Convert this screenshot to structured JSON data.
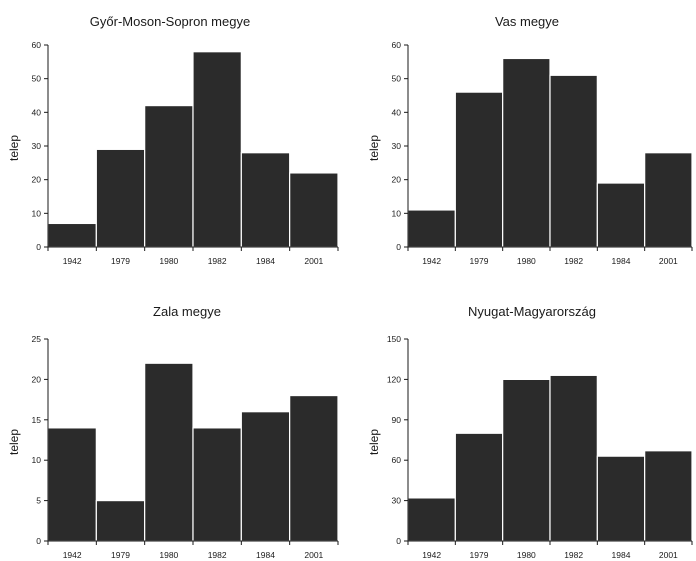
{
  "chart_data": [
    {
      "type": "bar",
      "title": "Győr-Moson-Sopron megye",
      "ylabel": "telep",
      "xlabel": "",
      "categories": [
        "1942",
        "1979",
        "1980",
        "1982",
        "1984",
        "2001"
      ],
      "values": [
        7,
        29,
        42,
        58,
        28,
        22
      ],
      "ylim": [
        0,
        60
      ],
      "yticks": [
        0,
        10,
        20,
        30,
        40,
        50,
        60
      ],
      "grid": false
    },
    {
      "type": "bar",
      "title": "Vas megye",
      "ylabel": "telep",
      "xlabel": "",
      "categories": [
        "1942",
        "1979",
        "1980",
        "1982",
        "1984",
        "2001"
      ],
      "values": [
        11,
        46,
        56,
        51,
        19,
        28
      ],
      "ylim": [
        0,
        60
      ],
      "yticks": [
        0,
        10,
        20,
        30,
        40,
        50,
        60
      ],
      "grid": false
    },
    {
      "type": "bar",
      "title": "Zala megye",
      "ylabel": "telep",
      "xlabel": "",
      "categories": [
        "1942",
        "1979",
        "1980",
        "1982",
        "1984",
        "2001"
      ],
      "values": [
        14,
        5,
        22,
        14,
        16,
        18
      ],
      "ylim": [
        0,
        25
      ],
      "yticks": [
        0,
        5,
        10,
        15,
        20,
        25
      ],
      "grid": false
    },
    {
      "type": "bar",
      "title": "Nyugat-Magyarország",
      "ylabel": "telep",
      "xlabel": "",
      "categories": [
        "1942",
        "1979",
        "1980",
        "1982",
        "1984",
        "2001"
      ],
      "values": [
        32,
        80,
        120,
        123,
        63,
        67
      ],
      "ylim": [
        0,
        150
      ],
      "yticks": [
        0,
        30,
        60,
        90,
        120,
        150
      ],
      "grid": false
    }
  ]
}
